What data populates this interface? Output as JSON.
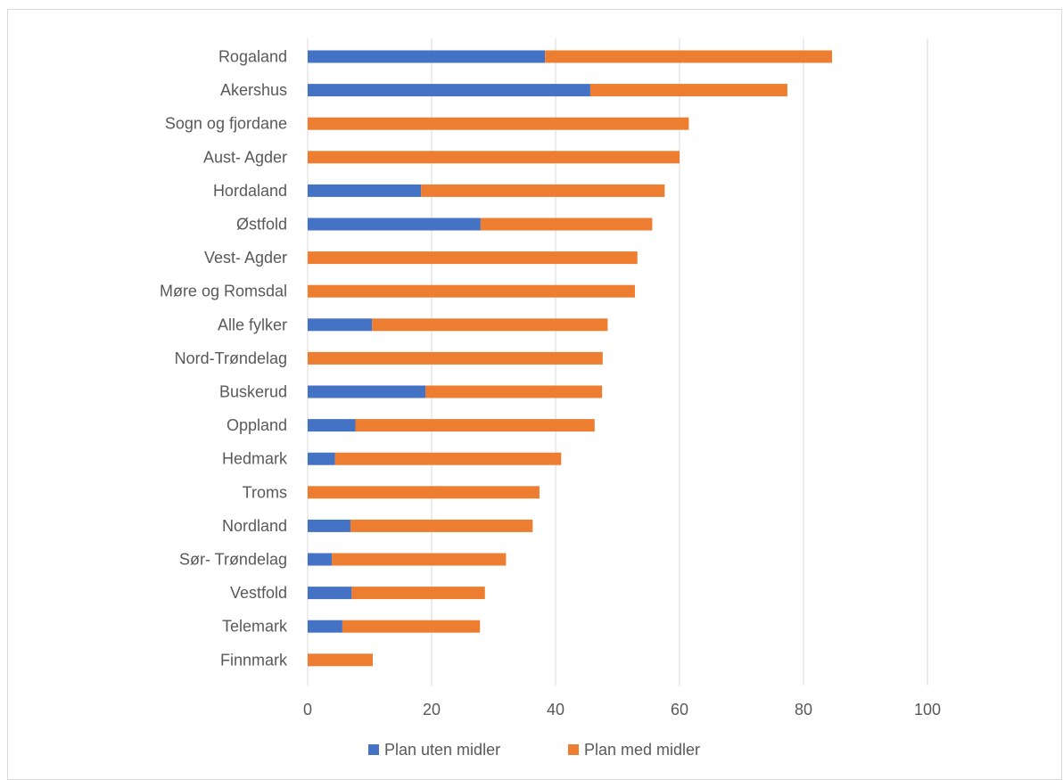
{
  "chart_data": {
    "type": "bar",
    "orientation": "horizontal",
    "stacked": true,
    "categories": [
      "Rogaland",
      "Akershus",
      "Sogn og fjordane",
      "Aust- Agder",
      "Hordaland",
      "Østfold",
      "Vest- Agder",
      "Møre og Romsdal",
      "Alle fylker",
      "Nord-Trøndelag",
      "Buskerud",
      "Oppland",
      "Hedmark",
      "Troms",
      "Nordland",
      "Sør- Trøndelag",
      "Vestfold",
      "Telemark",
      "Finnmark"
    ],
    "series": [
      {
        "name": "Plan uten midler",
        "color": "#4472C4",
        "values": [
          38.3,
          45.6,
          0,
          0,
          18.3,
          27.9,
          0,
          0,
          10.4,
          0,
          19.0,
          7.7,
          4.4,
          0,
          6.9,
          3.9,
          7.1,
          5.6,
          0
        ]
      },
      {
        "name": "Plan med midler",
        "color": "#ED7D31",
        "values": [
          46.3,
          31.8,
          61.5,
          60.0,
          39.3,
          27.7,
          53.2,
          52.8,
          38.0,
          47.6,
          28.5,
          38.6,
          36.5,
          37.4,
          29.4,
          28.1,
          21.5,
          22.2,
          10.5
        ]
      }
    ],
    "xlim": [
      0,
      100
    ],
    "xticks": [
      "0",
      "20",
      "40",
      "60",
      "80",
      "100"
    ],
    "grid": true,
    "legend_position": "bottom",
    "title": "",
    "xlabel": "",
    "ylabel": ""
  }
}
